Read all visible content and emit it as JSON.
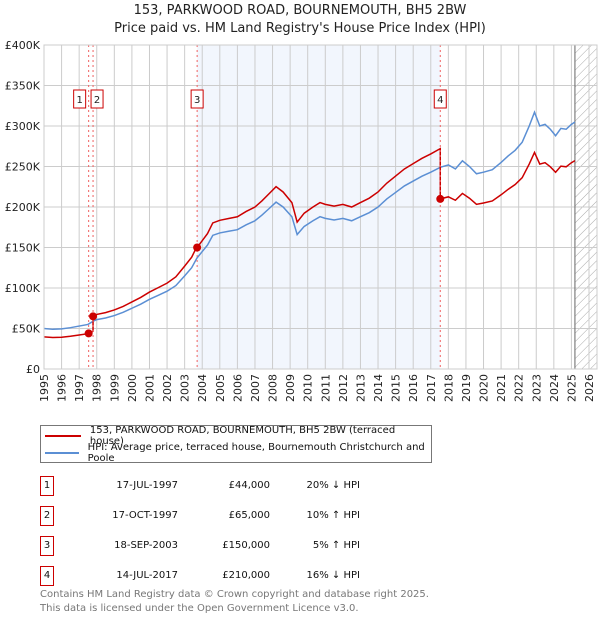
{
  "title": "153, PARKWOOD ROAD, BOURNEMOUTH, BH5 2BW",
  "subtitle": "Price paid vs. HM Land Registry's House Price Index (HPI)",
  "chart_data": {
    "type": "line",
    "xlim": [
      1995,
      2026
    ],
    "ylim": [
      0,
      400000
    ],
    "x_ticks": [
      "1995",
      "1996",
      "1997",
      "1998",
      "1999",
      "2000",
      "2001",
      "2002",
      "2003",
      "2004",
      "2005",
      "2006",
      "2007",
      "2008",
      "2009",
      "2010",
      "2011",
      "2012",
      "2013",
      "2014",
      "2015",
      "2016",
      "2017",
      "2018",
      "2019",
      "2020",
      "2021",
      "2022",
      "2023",
      "2024",
      "2025",
      "2026"
    ],
    "y_ticks": [
      {
        "v": 0,
        "label": "£0"
      },
      {
        "v": 50000,
        "label": "£50K"
      },
      {
        "v": 100000,
        "label": "£100K"
      },
      {
        "v": 150000,
        "label": "£150K"
      },
      {
        "v": 200000,
        "label": "£200K"
      },
      {
        "v": 250000,
        "label": "£250K"
      },
      {
        "v": 300000,
        "label": "£300K"
      },
      {
        "v": 350000,
        "label": "£350K"
      },
      {
        "v": 400000,
        "label": "£400K"
      }
    ],
    "grid": true,
    "shaded_range": [
      2003.71,
      2017.54
    ],
    "forecast_from": 2025.2,
    "series": [
      {
        "name": "HPI: Average price, terraced house, Bournemouth Christchurch and Poole",
        "color": "#5b8fd4",
        "x": [
          1995,
          1995.5,
          1996,
          1996.5,
          1997,
          1997.5,
          1997.8,
          1998,
          1998.5,
          1999,
          1999.5,
          2000,
          2000.5,
          2001,
          2001.5,
          2002,
          2002.5,
          2003,
          2003.4,
          2003.7,
          2004,
          2004.3,
          2004.6,
          2005,
          2005.5,
          2006,
          2006.5,
          2007,
          2007.4,
          2007.8,
          2008.2,
          2008.6,
          2009.1,
          2009.4,
          2009.8,
          2010.3,
          2010.7,
          2011,
          2011.5,
          2012,
          2012.5,
          2013,
          2013.5,
          2014,
          2014.5,
          2015,
          2015.5,
          2016,
          2016.5,
          2017,
          2017.54,
          2018,
          2018.4,
          2018.8,
          2019.2,
          2019.6,
          2020,
          2020.5,
          2021,
          2021.4,
          2021.8,
          2022.2,
          2022.6,
          2022.9,
          2023.2,
          2023.5,
          2023.8,
          2024.1,
          2024.4,
          2024.7,
          2025,
          2025.2
        ],
        "y": [
          50000,
          49000,
          49500,
          51000,
          53000,
          55000,
          59000,
          61000,
          63000,
          66000,
          70000,
          75000,
          80000,
          86000,
          91000,
          96000,
          103000,
          115000,
          125000,
          137000,
          145000,
          153000,
          165000,
          168000,
          170000,
          172000,
          178000,
          183000,
          190000,
          198000,
          206000,
          200000,
          188000,
          166000,
          176000,
          183000,
          188000,
          186000,
          184000,
          186000,
          183000,
          188000,
          193000,
          200000,
          210000,
          218000,
          226000,
          232000,
          238000,
          243000,
          249000,
          252000,
          247000,
          257000,
          250000,
          241000,
          243000,
          246000,
          255000,
          263000,
          270000,
          280000,
          300000,
          317000,
          300000,
          302000,
          296000,
          288000,
          297000,
          296000,
          302000,
          305000
        ]
      },
      {
        "name": "153, PARKWOOD ROAD, BOURNEMOUTH, BH5 2BW (terraced house)",
        "color": "#cc0000"
      }
    ],
    "sales": [
      {
        "id": "1",
        "date": "17-JUL-1997",
        "x": 1997.54,
        "price": 44000,
        "price_label": "£44,000",
        "hpi": "20% ↓ HPI"
      },
      {
        "id": "2",
        "date": "17-OCT-1997",
        "x": 1997.79,
        "price": 65000,
        "price_label": "£65,000",
        "hpi": "10% ↑ HPI"
      },
      {
        "id": "3",
        "date": "18-SEP-2003",
        "x": 2003.71,
        "price": 150000,
        "price_label": "£150,000",
        "hpi": "5% ↑ HPI"
      },
      {
        "id": "4",
        "date": "14-JUL-2017",
        "x": 2017.54,
        "price": 210000,
        "price_label": "£210,000",
        "hpi": "16% ↓ HPI"
      }
    ]
  },
  "legend": {
    "property": "153, PARKWOOD ROAD, BOURNEMOUTH, BH5 2BW (terraced house)",
    "hpi": "HPI: Average price, terraced house, Bournemouth Christchurch and Poole",
    "colors": {
      "property": "#cc0000",
      "hpi": "#5b8fd4"
    }
  },
  "footer": {
    "line1": "Contains HM Land Registry data © Crown copyright and database right 2025.",
    "line2": "This data is licensed under the Open Government Licence v3.0."
  }
}
